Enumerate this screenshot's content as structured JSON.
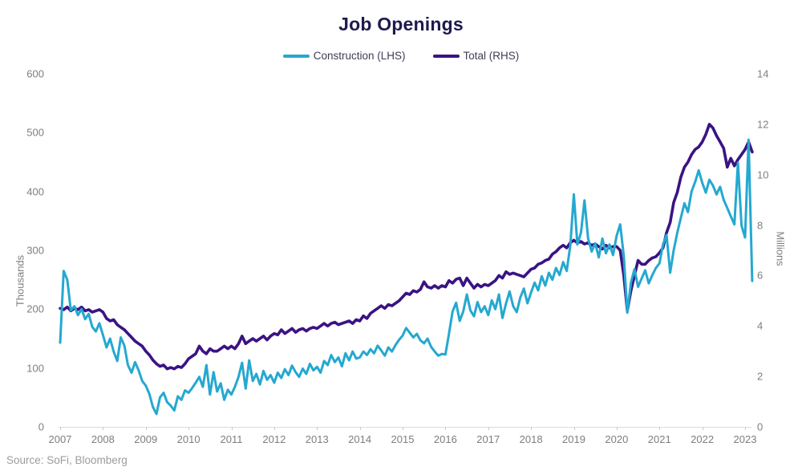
{
  "title": "Job Openings",
  "source": "Source: SoFi, Bloomberg",
  "legend": [
    {
      "label": "Construction (LHS)",
      "color": "#25A8D0"
    },
    {
      "label": "Total (RHS)",
      "color": "#3A1383"
    }
  ],
  "left_axis": {
    "title": "Thousands",
    "ticks": [
      0,
      100,
      200,
      300,
      400,
      500,
      600
    ],
    "min": 0,
    "max": 600
  },
  "right_axis": {
    "title": "Millions",
    "ticks": [
      0,
      2,
      4,
      6,
      8,
      10,
      12,
      14
    ],
    "min": 0,
    "max": 14
  },
  "x_axis": {
    "years": [
      2007,
      2008,
      2009,
      2010,
      2011,
      2012,
      2013,
      2014,
      2015,
      2016,
      2017,
      2018,
      2019,
      2020,
      2021,
      2022,
      2023
    ]
  },
  "chart_data": {
    "type": "line",
    "title": "Job Openings",
    "frequency": "monthly",
    "x_start": "2007-01",
    "x_end": "2023-03",
    "grid": false,
    "legend_position": "top-center",
    "xlim": [
      2007,
      2023.25
    ],
    "ylim_left": [
      0,
      600
    ],
    "ylim_right": [
      0,
      14
    ],
    "ylabel_left": "Thousands",
    "ylabel_right": "Millions",
    "series": [
      {
        "name": "Construction (LHS)",
        "axis": "left",
        "units": "thousands",
        "color": "#25A8D0",
        "stroke_width": 3,
        "values": [
          143,
          265,
          250,
          198,
          205,
          190,
          200,
          183,
          192,
          170,
          162,
          176,
          156,
          135,
          150,
          128,
          112,
          152,
          138,
          105,
          92,
          110,
          96,
          78,
          70,
          56,
          34,
          22,
          50,
          58,
          42,
          36,
          28,
          52,
          46,
          62,
          58,
          66,
          75,
          85,
          68,
          105,
          55,
          93,
          60,
          74,
          46,
          63,
          55,
          68,
          85,
          109,
          65,
          113,
          78,
          90,
          72,
          95,
          80,
          88,
          75,
          92,
          83,
          98,
          88,
          104,
          93,
          85,
          99,
          90,
          107,
          96,
          102,
          92,
          112,
          105,
          122,
          110,
          118,
          103,
          125,
          113,
          128,
          116,
          118,
          128,
          122,
          132,
          125,
          138,
          130,
          121,
          135,
          128,
          139,
          148,
          155,
          168,
          160,
          152,
          158,
          147,
          142,
          150,
          136,
          128,
          121,
          124,
          123,
          158,
          196,
          211,
          180,
          196,
          225,
          198,
          188,
          212,
          195,
          205,
          190,
          215,
          200,
          225,
          185,
          210,
          230,
          205,
          195,
          220,
          235,
          210,
          228,
          245,
          232,
          256,
          240,
          262,
          250,
          270,
          258,
          280,
          265,
          308,
          395,
          310,
          330,
          385,
          320,
          298,
          312,
          288,
          320,
          295,
          310,
          292,
          325,
          344,
          290,
          194,
          245,
          268,
          238,
          252,
          266,
          244,
          258,
          270,
          278,
          310,
          326,
          262,
          300,
          330,
          355,
          380,
          365,
          400,
          416,
          436,
          415,
          398,
          420,
          410,
          395,
          408,
          386,
          372,
          358,
          344,
          449,
          342,
          322,
          488,
          248
        ]
      },
      {
        "name": "Total (RHS)",
        "axis": "right",
        "units": "millions",
        "color": "#3A1383",
        "stroke_width": 3.6,
        "values": [
          4.7,
          4.65,
          4.75,
          4.6,
          4.7,
          4.65,
          4.75,
          4.6,
          4.65,
          4.55,
          4.6,
          4.65,
          4.55,
          4.3,
          4.2,
          4.25,
          4.05,
          3.95,
          3.85,
          3.7,
          3.55,
          3.4,
          3.3,
          3.2,
          3.0,
          2.85,
          2.65,
          2.5,
          2.4,
          2.45,
          2.3,
          2.35,
          2.3,
          2.4,
          2.35,
          2.5,
          2.7,
          2.8,
          2.9,
          3.2,
          3.0,
          2.9,
          3.1,
          3.0,
          3.0,
          3.1,
          3.2,
          3.1,
          3.2,
          3.1,
          3.3,
          3.6,
          3.3,
          3.4,
          3.5,
          3.4,
          3.5,
          3.6,
          3.45,
          3.6,
          3.7,
          3.65,
          3.85,
          3.7,
          3.8,
          3.9,
          3.75,
          3.85,
          3.9,
          3.8,
          3.9,
          3.95,
          3.9,
          4.0,
          4.1,
          4.0,
          4.1,
          4.15,
          4.05,
          4.1,
          4.15,
          4.2,
          4.1,
          4.25,
          4.2,
          4.4,
          4.3,
          4.5,
          4.6,
          4.7,
          4.8,
          4.7,
          4.85,
          4.8,
          4.9,
          5.0,
          5.15,
          5.3,
          5.25,
          5.4,
          5.35,
          5.45,
          5.75,
          5.55,
          5.5,
          5.6,
          5.5,
          5.6,
          5.55,
          5.8,
          5.7,
          5.85,
          5.9,
          5.6,
          5.9,
          5.7,
          5.5,
          5.65,
          5.55,
          5.65,
          5.6,
          5.7,
          5.8,
          6.0,
          5.9,
          6.15,
          6.05,
          6.1,
          6.05,
          6.0,
          5.95,
          6.1,
          6.25,
          6.3,
          6.45,
          6.5,
          6.6,
          6.65,
          6.85,
          6.95,
          7.1,
          7.2,
          7.1,
          7.3,
          7.4,
          7.3,
          7.35,
          7.25,
          7.3,
          7.2,
          7.25,
          7.15,
          7.05,
          7.2,
          7.1,
          7.15,
          7.15,
          7.0,
          6.0,
          4.6,
          5.4,
          6.0,
          6.6,
          6.45,
          6.45,
          6.6,
          6.7,
          6.75,
          6.9,
          7.1,
          7.7,
          8.1,
          8.9,
          9.3,
          9.9,
          10.3,
          10.5,
          10.8,
          11.0,
          11.1,
          11.3,
          11.6,
          12.0,
          11.85,
          11.55,
          11.3,
          11.05,
          10.3,
          10.65,
          10.35,
          10.6,
          10.8,
          11.0,
          11.3,
          10.9
        ]
      }
    ]
  }
}
